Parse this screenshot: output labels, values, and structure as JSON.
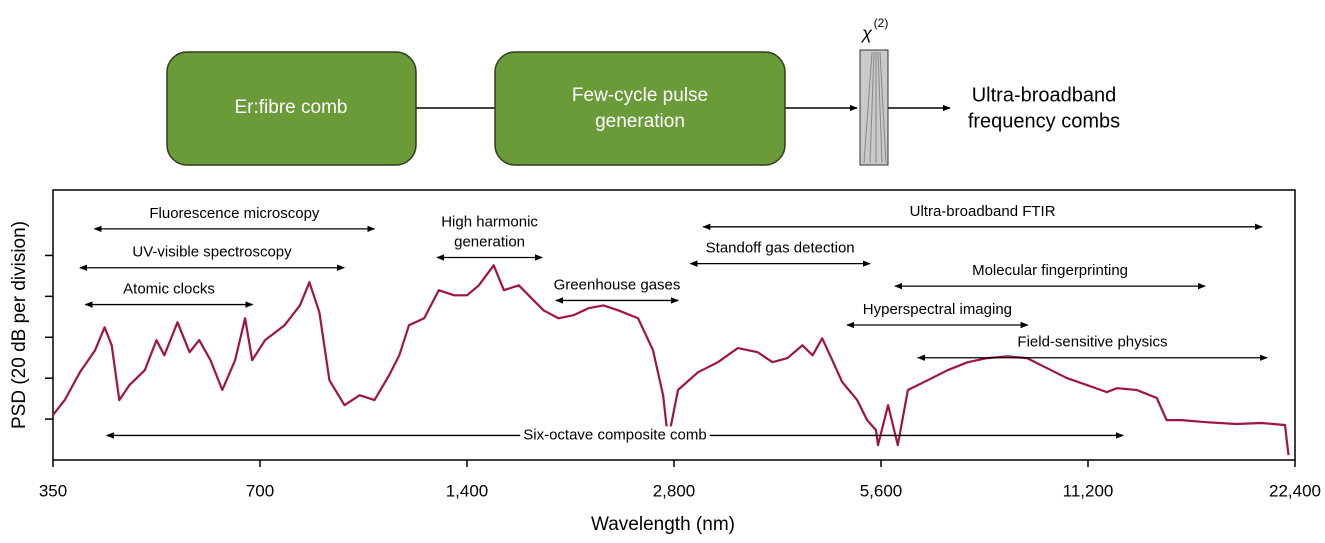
{
  "diagram": {
    "boxes": [
      {
        "label": [
          "Er:fibre comb"
        ]
      },
      {
        "label": [
          "Few-cycle pulse",
          "generation"
        ]
      }
    ],
    "crystal_symbol": "χ",
    "crystal_order": "(2)",
    "output": [
      "Ultra-broadband",
      "frequency combs"
    ]
  },
  "chart_data": {
    "type": "line",
    "xlabel": "Wavelength (nm)",
    "ylabel": "PSD (20 dB per division)",
    "xscale": "log",
    "xlim": [
      350,
      22400
    ],
    "xticks": [
      350,
      700,
      {
        "value": 1400,
        "label": "1,400"
      },
      {
        "value": 2800,
        "label": "2,800"
      },
      {
        "value": 5600,
        "label": "5,600"
      },
      {
        "value": 11200,
        "label": "11,200"
      },
      {
        "value": 22400,
        "label": "22,400"
      }
    ],
    "ylim": [
      0,
      132
    ],
    "yticks": [
      20,
      40,
      60,
      80,
      100
    ],
    "color": "#a0153e",
    "x": [
      350,
      364,
      383,
      403,
      416,
      426,
      437,
      452,
      476,
      495,
      508,
      531,
      553,
      571,
      593,
      617,
      644,
      666,
      682,
      712,
      760,
      800,
      826,
      854,
      883,
      929,
      977,
      1027,
      1079,
      1116,
      1153,
      1213,
      1274,
      1341,
      1400,
      1457,
      1531,
      1584,
      1665,
      1750,
      1809,
      1902,
      2000,
      2102,
      2211,
      2323,
      2483,
      2610,
      2700,
      2745,
      2838,
      3033,
      3243,
      3467,
      3705,
      3894,
      4095,
      4304,
      4453,
      4599,
      4757,
      4917,
      5171,
      5346,
      5507,
      5544,
      5734,
      5925,
      6127,
      6549,
      7000,
      7487,
      8000,
      8551,
      9135,
      9767,
      10445,
      11163,
      11928,
      12337,
      13187,
      14100,
      14574,
      15319,
      16632,
      18398,
      20005,
      21663,
      21921
    ],
    "values": [
      22.0,
      29.3,
      42.9,
      53.7,
      64.9,
      56.1,
      29.3,
      36.6,
      43.9,
      58.6,
      51.2,
      67.3,
      52.7,
      58.6,
      48.8,
      34.2,
      48.8,
      69.3,
      48.8,
      58.6,
      65.9,
      75.6,
      86.9,
      72.2,
      39.0,
      26.8,
      31.7,
      29.3,
      41.5,
      51.2,
      65.9,
      69.3,
      83.0,
      80.5,
      80.5,
      85.4,
      95.2,
      83.0,
      85.4,
      78.1,
      73.2,
      69.3,
      70.8,
      74.2,
      75.6,
      73.2,
      69.3,
      53.7,
      31.7,
      9.8,
      34.2,
      42.9,
      47.8,
      54.7,
      52.7,
      47.8,
      49.8,
      56.1,
      51.2,
      59.5,
      48.8,
      38.1,
      29.3,
      19.5,
      14.6,
      7.3,
      26.8,
      7.3,
      34.2,
      39.0,
      43.9,
      47.8,
      49.8,
      50.7,
      49.8,
      44.9,
      40.0,
      36.6,
      33.2,
      35.1,
      34.2,
      30.3,
      19.5,
      19.5,
      18.5,
      17.6,
      18.1,
      17.1,
      2.4
    ],
    "annotations": [
      {
        "text": [
          "Fluorescence microscopy"
        ],
        "x": [
          402,
          1027
        ],
        "y": 113
      },
      {
        "text": [
          "UV-visible spectroscopy"
        ],
        "x": [
          383,
          928
        ],
        "y": 94
      },
      {
        "text": [
          "Atomic clocks"
        ],
        "x": [
          390,
          683
        ],
        "y": 76
      },
      {
        "text": [
          "High harmonic",
          "generation"
        ],
        "x": [
          1266,
          1801
        ],
        "y": 99
      },
      {
        "text": [
          "Greenhouse gases"
        ],
        "x": [
          1885,
          2840
        ],
        "y": 78
      },
      {
        "text": [
          "Ultra-broadband FTIR"
        ],
        "x": [
          3087,
          20060
        ],
        "y": 114
      },
      {
        "text": [
          "Standoff gas detection"
        ],
        "x": [
          2957,
          5398
        ],
        "y": 96
      },
      {
        "text": [
          "Molecular fingerprinting"
        ],
        "x": [
          5868,
          16580
        ],
        "y": 85
      },
      {
        "text": [
          "Hyperspectral imaging"
        ],
        "x": [
          4998,
          9155
        ],
        "y": 66
      },
      {
        "text": [
          "Field-sensitive physics"
        ],
        "x": [
          6335,
          20400
        ],
        "y": 50
      },
      {
        "text": [
          "Six-octave composite comb"
        ],
        "x": [
          419,
          12600
        ],
        "y": 12,
        "inline": true
      }
    ]
  }
}
